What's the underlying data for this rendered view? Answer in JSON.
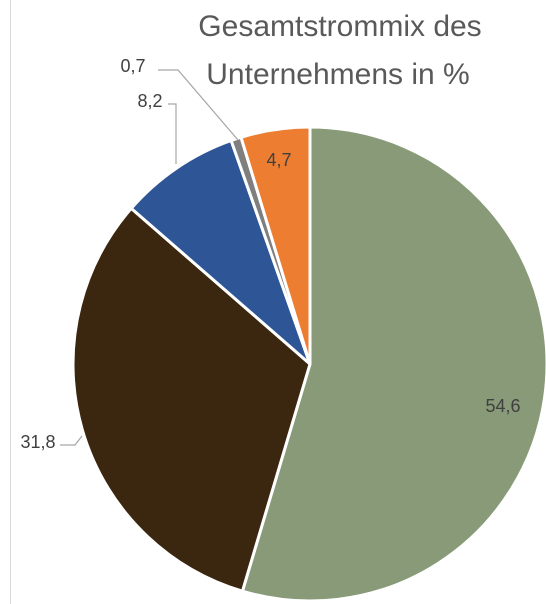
{
  "chart_data": {
    "type": "pie",
    "title_lines": [
      "Gesamtstrommix des",
      "Unternehmens in %"
    ],
    "labels": [
      "54,6",
      "31,8",
      "8,2",
      "0,7",
      "4,7"
    ],
    "slices": [
      {
        "value": 54.6,
        "label": "54,6",
        "color": "#889a78"
      },
      {
        "value": 31.8,
        "label": "31,8",
        "color": "#3b2710"
      },
      {
        "value": 8.2,
        "label": "8,2",
        "color": "#2e5596"
      },
      {
        "value": 0.7,
        "label": "0,7",
        "color": "#7f7f7f"
      },
      {
        "value": 4.7,
        "label": "4,7",
        "color": "#ed7d31"
      }
    ],
    "legend": "none"
  }
}
